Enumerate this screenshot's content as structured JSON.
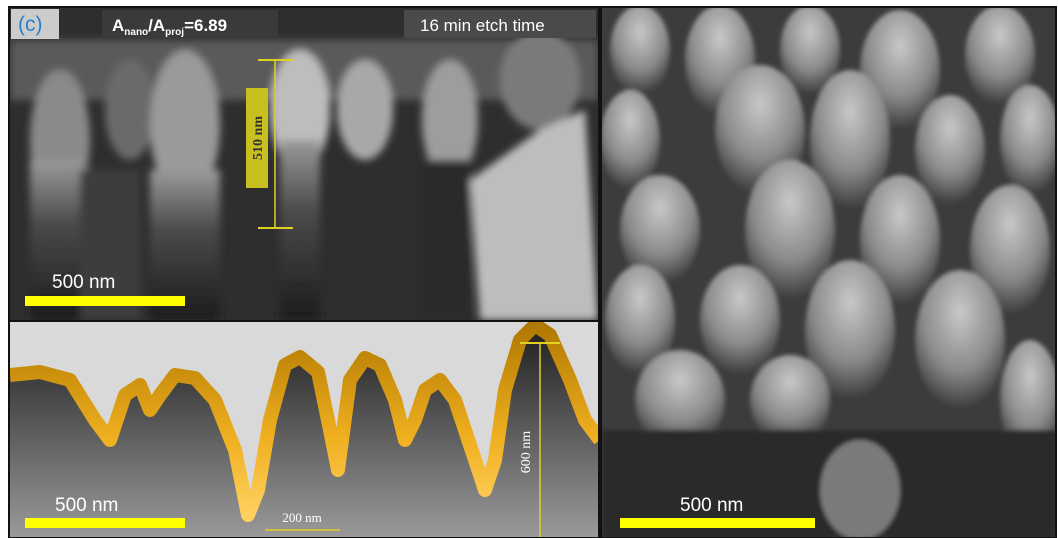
{
  "panel_label": "(c)",
  "area_ratio": {
    "a": "A",
    "nano": "nano",
    "slash_a": "/A",
    "proj": "proj",
    "value": "=6.89"
  },
  "etch_time": "16 min etch time",
  "top_left": {
    "height_label": "510 nm",
    "scale_bar": "500 nm"
  },
  "bottom_left": {
    "scale_bar": "500 nm",
    "width_label": "200 nm",
    "height_label": "600 nm"
  },
  "right": {
    "scale_bar": "500 nm"
  }
}
